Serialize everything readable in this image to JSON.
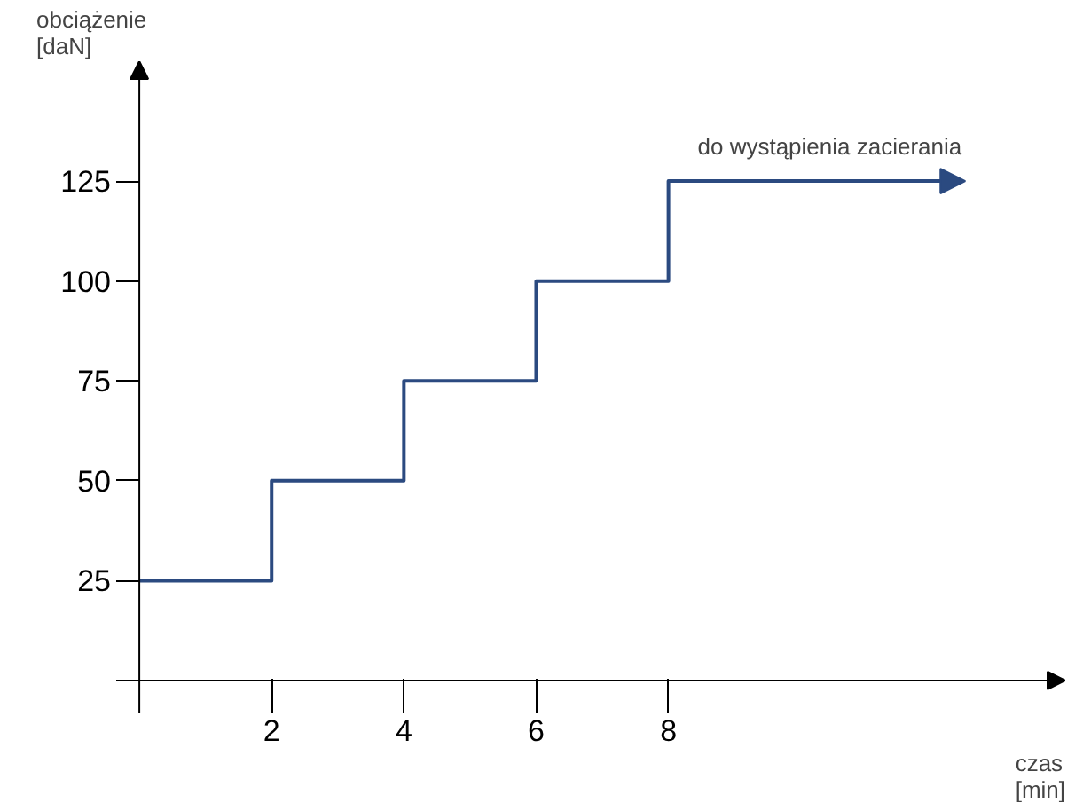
{
  "chart_data": {
    "type": "step",
    "xlabel": "czas\n[min]",
    "ylabel": "obciążenie\n[daN]",
    "x": [
      0,
      2,
      4,
      6,
      8,
      12.3
    ],
    "series": [
      {
        "color": "#2b4a80",
        "values": [
          25,
          50,
          75,
          100,
          125,
          125
        ]
      }
    ],
    "xlim": [
      -0.35,
      14
    ],
    "ylim": [
      -8,
      155
    ],
    "xticks": [
      2,
      4,
      6,
      8
    ],
    "yticks": [
      25,
      50,
      75,
      100,
      125
    ],
    "annotations": [
      {
        "text": "do wystąpienia zacierania",
        "x": 12.3,
        "y": 125
      }
    ],
    "grid": false,
    "marker": "none",
    "line_style": "solid"
  }
}
